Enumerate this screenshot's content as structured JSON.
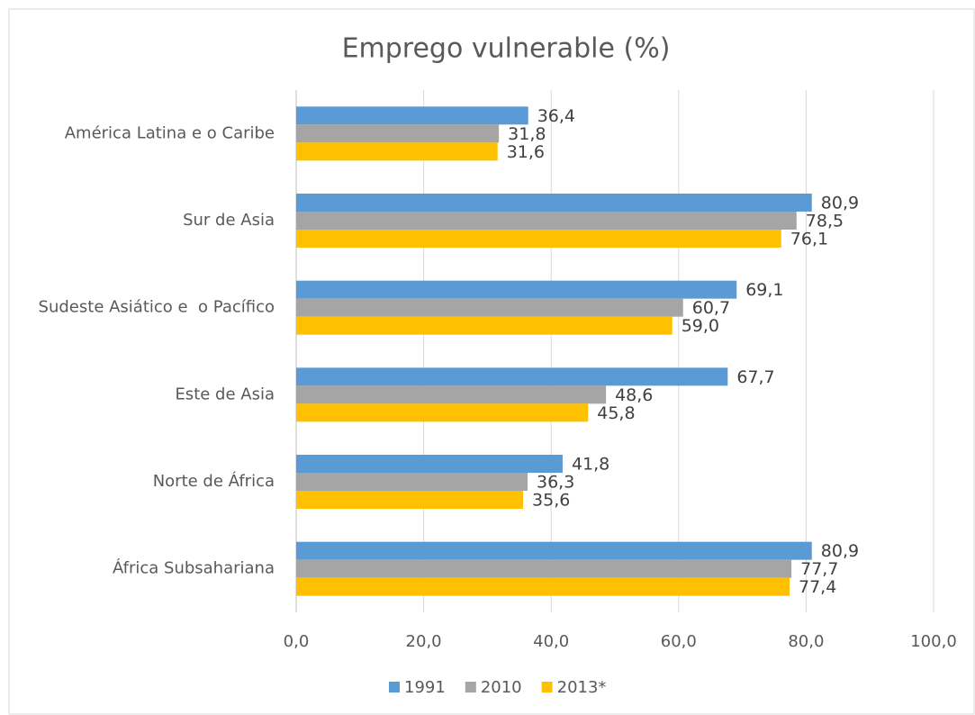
{
  "chart_data": {
    "type": "hbar",
    "title": "Emprego vulnerable (%)",
    "categories": [
      "América Latina e o Caribe",
      "Sur de Asia",
      "Sudeste Asiático e  o Pacífico",
      "Este de Asia",
      "Norte de África",
      "África Subsahariana"
    ],
    "series": [
      {
        "name": "1991",
        "color": "#5b9bd5",
        "values": [
          36.4,
          80.9,
          69.1,
          67.7,
          41.8,
          80.9
        ],
        "value_labels": [
          "36,4",
          "80,9",
          "69,1",
          "67,7",
          "41,8",
          "80,9"
        ]
      },
      {
        "name": "2010",
        "color": "#a5a5a5",
        "values": [
          31.8,
          78.5,
          60.7,
          48.6,
          36.3,
          77.7
        ],
        "value_labels": [
          "31,8",
          "78,5",
          "60,7",
          "48,6",
          "36,3",
          "77,7"
        ]
      },
      {
        "name": "2013*",
        "color": "#ffc000",
        "values": [
          31.6,
          76.1,
          59.0,
          45.8,
          35.6,
          77.4
        ],
        "value_labels": [
          "31,6",
          "76,1",
          "59,0",
          "45,8",
          "35,6",
          "77,4"
        ]
      }
    ],
    "xlim": [
      0,
      100
    ],
    "xticks": [
      {
        "value": 0,
        "label": "0,0"
      },
      {
        "value": 20,
        "label": "20,0"
      },
      {
        "value": 40,
        "label": "40,0"
      },
      {
        "value": 60,
        "label": "60,0"
      },
      {
        "value": 80,
        "label": "80,0"
      },
      {
        "value": 100,
        "label": "100,0"
      }
    ],
    "grid": true,
    "legend": "bottom"
  }
}
